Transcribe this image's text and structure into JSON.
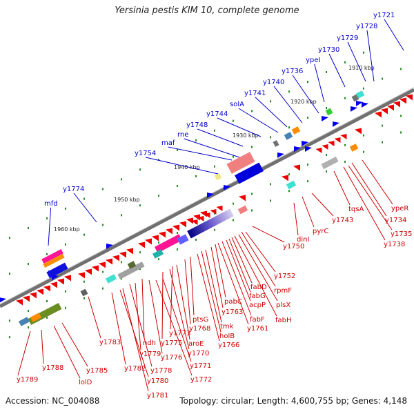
{
  "title": "Yersinia pestis KIM 10, complete genome",
  "footer": {
    "accession": "Accession: NC_004088",
    "stats": "Topology: circular; Length: 4,600,755 bp; Genes: 4,148"
  },
  "colors": {
    "forward_label": "#0000cc",
    "reverse_label": "#cc0000",
    "ruler": "#808080",
    "ticks": "#228b22"
  },
  "kbp_labels": [
    "1910 kbp",
    "1920 kbp",
    "1930 kbp",
    "1940 kbp",
    "1950 kbp",
    "1960 kbp"
  ],
  "forward_genes": [
    "y1721",
    "y1728",
    "y1729",
    "y1730",
    "ypeI",
    "y1736",
    "y1740",
    "y1741",
    "solA",
    "y1744",
    "y1748",
    "rne",
    "maf",
    "y1754",
    "y1774",
    "mfd"
  ],
  "reverse_genes": [
    "ypeR",
    "y1734",
    "y1735",
    "y1738",
    "tqsA",
    "y1743",
    "pyrC",
    "dinI",
    "y1750",
    "y1752",
    "rpmF",
    "plsX",
    "fabH",
    "fabD",
    "fabG",
    "acpP",
    "fabF",
    "y1761",
    "pabC",
    "y1763",
    "tmk",
    "holB",
    "y1766",
    "ptsG",
    "y1768",
    "y1773",
    "aroE",
    "y1770",
    "y1775",
    "y1771",
    "y1772",
    "ndh",
    "y1779",
    "y1776",
    "y1778",
    "y1783",
    "y1782",
    "y1780",
    "y1781",
    "y1788",
    "y1785",
    "y1789",
    "lolD"
  ]
}
